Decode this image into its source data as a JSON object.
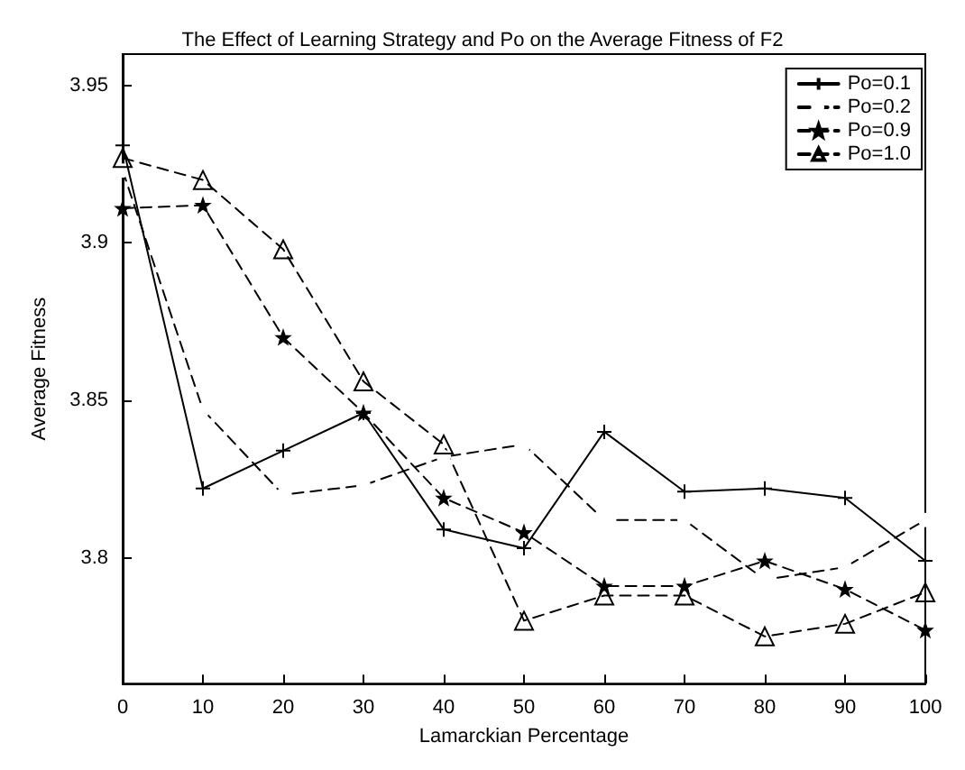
{
  "chart_data": {
    "type": "line",
    "title": "The Effect of Learning Strategy and Po on the Average Fitness of F2",
    "xlabel": "Lamarckian Percentage",
    "ylabel": "Average Fitness",
    "x": [
      0,
      10,
      20,
      30,
      40,
      50,
      60,
      70,
      80,
      90,
      100
    ],
    "series": [
      {
        "name": "Po=0.1",
        "color": "#000000",
        "marker": "cross",
        "line_style": "solid",
        "values": [
          3.931,
          3.822,
          3.834,
          3.846,
          3.809,
          3.803,
          3.84,
          3.821,
          3.822,
          3.819,
          3.799
        ]
      },
      {
        "name": "Po=0.2",
        "color": "#000000",
        "marker": "circle",
        "line_style": "dashed",
        "values": [
          3.923,
          3.847,
          3.82,
          3.823,
          3.832,
          3.836,
          3.812,
          3.812,
          3.793,
          3.797,
          3.812
        ]
      },
      {
        "name": "Po=0.9",
        "color": "#000000",
        "marker": "star",
        "line_style": "dashed",
        "values": [
          3.911,
          3.912,
          3.87,
          3.846,
          3.819,
          3.808,
          3.791,
          3.791,
          3.799,
          3.79,
          3.777
        ]
      },
      {
        "name": "Po=1.0",
        "color": "#000000",
        "marker": "triangle",
        "line_style": "dashed",
        "values": [
          3.927,
          3.92,
          3.898,
          3.856,
          3.836,
          3.78,
          3.788,
          3.788,
          3.775,
          3.779,
          3.789
        ]
      }
    ],
    "xlim": [
      0,
      100
    ],
    "xticks": [
      0,
      10,
      20,
      30,
      40,
      50,
      60,
      70,
      80,
      90,
      100
    ],
    "ylim": [
      3.76,
      3.96
    ],
    "yticks": [
      3.8,
      3.85,
      3.9,
      3.95
    ],
    "grid": false,
    "legend": "top right"
  }
}
